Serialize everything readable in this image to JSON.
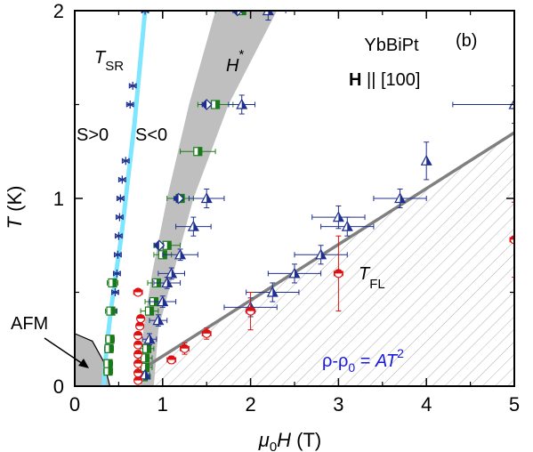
{
  "chart_data": {
    "type": "scatter",
    "xlabel": "μ₀H (T)",
    "ylabel": "T (K)",
    "xlim": [
      0,
      5
    ],
    "ylim": [
      0,
      2
    ],
    "x_ticks": [
      "0",
      "1",
      "2",
      "3",
      "4",
      "5"
    ],
    "y_ticks": [
      "0",
      "1",
      "2"
    ],
    "panel_label": "(b)",
    "annotations": {
      "compound": "YbBiPt",
      "field": "H || [100]",
      "tsr": "T",
      "tsr_sub": "SR",
      "hstar": "H",
      "hstar_sup": "*",
      "s_pos": "S>0",
      "s_neg": "S<0",
      "tfl": "T",
      "tfl_sub": "FL",
      "afm": "AFM",
      "rho_lhs": "ρ-ρ",
      "rho_sub": "0",
      "rho_eq": " = ",
      "rho_rhs": "AT",
      "rho_sup": "2"
    },
    "regions": {
      "afm": {
        "color": "#bbbbbb",
        "boundary": [
          [
            0,
            0.28
          ],
          [
            0.2,
            0.24
          ],
          [
            0.33,
            0.13
          ],
          [
            0.4,
            0
          ]
        ]
      },
      "hstar_band": {
        "color": "#bfbfbf",
        "left": [
          [
            0.75,
            0
          ],
          [
            0.78,
            0.3
          ],
          [
            0.88,
            0.6
          ],
          [
            1.05,
            1.0
          ],
          [
            1.3,
            1.5
          ],
          [
            1.6,
            2.0
          ]
        ],
        "right": [
          [
            0.9,
            0
          ],
          [
            0.95,
            0.3
          ],
          [
            1.12,
            0.6
          ],
          [
            1.35,
            1.0
          ],
          [
            1.75,
            1.5
          ],
          [
            2.3,
            2.0
          ]
        ]
      },
      "tsr_line": {
        "color": "#7fe6ff",
        "points": [
          [
            0.33,
            0
          ],
          [
            0.36,
            0.2
          ],
          [
            0.41,
            0.4
          ],
          [
            0.47,
            0.6
          ],
          [
            0.53,
            0.8
          ],
          [
            0.58,
            1.0
          ],
          [
            0.63,
            1.2
          ],
          [
            0.68,
            1.4
          ],
          [
            0.72,
            1.6
          ],
          [
            0.76,
            1.8
          ],
          [
            0.8,
            2.0
          ]
        ]
      },
      "tfl_line": {
        "color": "#808080",
        "points": [
          [
            0.8,
            0.1
          ],
          [
            5,
            1.35
          ]
        ]
      }
    },
    "series": [
      {
        "marker": "star",
        "color": "#1f2f8f",
        "points": [
          [
            0.38,
            0.1
          ],
          [
            0.4,
            0.2
          ],
          [
            0.44,
            0.4
          ],
          [
            0.46,
            0.5
          ],
          [
            0.48,
            0.6
          ],
          [
            0.49,
            0.7
          ],
          [
            0.5,
            0.8
          ],
          [
            0.51,
            0.9
          ],
          [
            0.52,
            1.0
          ],
          [
            0.54,
            1.1
          ],
          [
            0.58,
            1.2
          ],
          [
            0.63,
            1.5
          ],
          [
            0.66,
            1.6
          ],
          [
            0.8,
            2.0
          ]
        ],
        "xerr": [
          0.04,
          0.04,
          0.04,
          0.04,
          0.04,
          0.04,
          0.04,
          0.04,
          0.04,
          0.04,
          0.04,
          0.04,
          0.04,
          0.04
        ]
      },
      {
        "marker": "square-half",
        "color": "#1a7a1a",
        "points": [
          [
            0.38,
            0.08
          ],
          [
            0.38,
            0.12
          ],
          [
            0.39,
            0.2
          ],
          [
            0.4,
            0.25
          ],
          [
            0.41,
            0.4
          ],
          [
            0.43,
            0.55
          ],
          [
            0.78,
            0.05
          ],
          [
            0.8,
            0.1
          ],
          [
            0.8,
            0.15
          ],
          [
            0.82,
            0.2
          ],
          [
            0.85,
            0.4
          ],
          [
            0.9,
            0.45
          ],
          [
            0.93,
            0.55
          ],
          [
            1.0,
            0.7
          ],
          [
            1.05,
            0.75
          ],
          [
            1.2,
            1.0
          ],
          [
            1.4,
            1.25
          ],
          [
            1.6,
            1.5
          ],
          [
            1.9,
            2.0
          ]
        ],
        "xerr": [
          0.05,
          0.05,
          0.05,
          0.05,
          0.06,
          0.06,
          0.08,
          0.08,
          0.08,
          0.08,
          0.1,
          0.1,
          0.1,
          0.1,
          0.15,
          0.15,
          0.2,
          0.2,
          0.3
        ]
      },
      {
        "marker": "diamond-half",
        "color": "#1f2f8f",
        "points": [
          [
            0.96,
            0.75
          ],
          [
            1.18,
            1.0
          ],
          [
            1.5,
            1.5
          ],
          [
            1.85,
            2.0
          ]
        ],
        "xerr": [
          0.05,
          0.05,
          0.05,
          0.05
        ]
      },
      {
        "marker": "triangle",
        "color": "#1f2f8f",
        "points": [
          [
            0.8,
            0.06
          ],
          [
            0.85,
            0.25
          ],
          [
            0.95,
            0.35
          ],
          [
            1.0,
            0.45
          ],
          [
            1.05,
            0.55
          ],
          [
            1.1,
            0.6
          ],
          [
            1.2,
            0.7
          ],
          [
            1.35,
            0.85
          ],
          [
            1.5,
            1.0
          ],
          [
            1.9,
            1.5
          ],
          [
            2.0,
            0.42
          ],
          [
            2.25,
            0.5
          ],
          [
            2.5,
            0.6
          ],
          [
            2.8,
            0.7
          ],
          [
            3.0,
            0.9
          ],
          [
            3.1,
            0.85
          ],
          [
            3.7,
            1.0
          ],
          [
            4.0,
            1.2
          ],
          [
            5.0,
            1.5
          ],
          [
            2.2,
            2.0
          ]
        ],
        "xerr": [
          0.05,
          0.08,
          0.1,
          0.15,
          0.15,
          0.15,
          0.2,
          0.2,
          0.2,
          0.15,
          0.3,
          0.3,
          0.3,
          0.3,
          0.3,
          0.3,
          0.3,
          0.0,
          0.7,
          0.2
        ],
        "yerr": [
          0,
          0.03,
          0.03,
          0.03,
          0.03,
          0.03,
          0.03,
          0.05,
          0.05,
          0.05,
          0.05,
          0.05,
          0.05,
          0.05,
          0.06,
          0.05,
          0.05,
          0.1,
          0.1,
          0.05
        ]
      },
      {
        "marker": "circle-half",
        "color": "#dd1111",
        "points": [
          [
            0.72,
            0.03
          ],
          [
            0.72,
            0.07
          ],
          [
            0.72,
            0.12
          ],
          [
            0.72,
            0.17
          ],
          [
            0.72,
            0.22
          ],
          [
            0.72,
            0.27
          ],
          [
            0.74,
            0.32
          ],
          [
            0.75,
            0.36
          ],
          [
            0.72,
            0.5
          ],
          [
            1.1,
            0.14
          ],
          [
            1.25,
            0.2
          ],
          [
            1.5,
            0.28
          ],
          [
            2.0,
            0.4
          ],
          [
            3.0,
            0.6
          ],
          [
            5.0,
            0.78
          ]
        ],
        "xerr": [
          0.03,
          0.03,
          0.03,
          0.03,
          0.03,
          0.03,
          0.03,
          0.03,
          0.05,
          0.05,
          0.05,
          0.05,
          0.05,
          0.05,
          0.05
        ],
        "yerr": [
          0,
          0,
          0,
          0,
          0,
          0,
          0,
          0,
          0,
          0.02,
          0.03,
          0.03,
          0.1,
          0.2,
          0.2
        ]
      }
    ]
  }
}
